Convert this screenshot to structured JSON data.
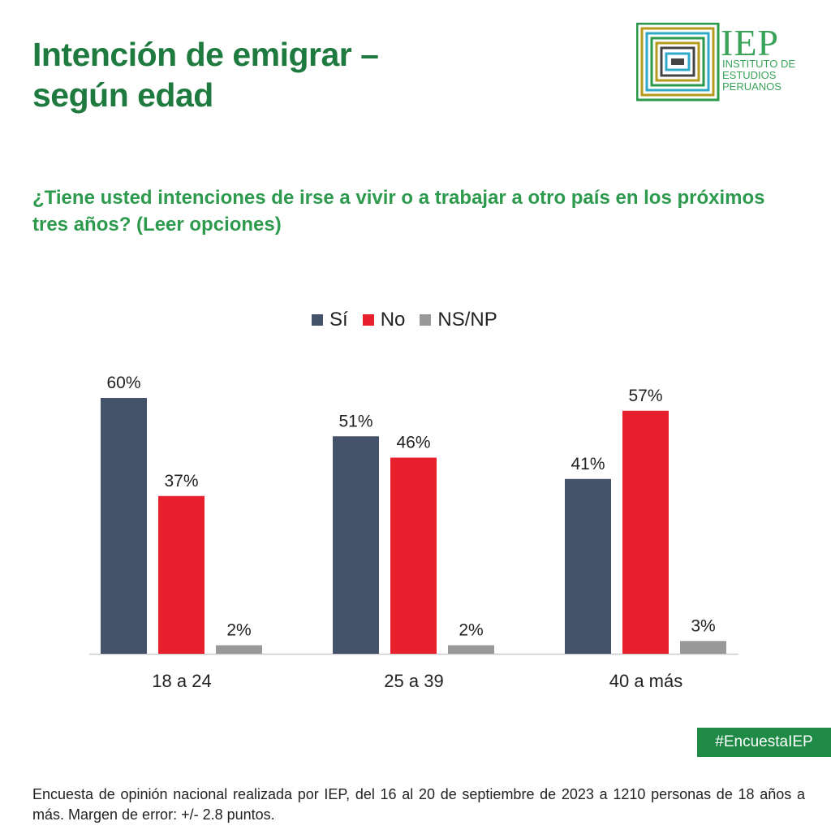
{
  "header": {
    "title_line1": "Intención de emigrar –",
    "title_line2": "según edad"
  },
  "logo": {
    "name": "IEP",
    "sub_line1": "INSTITUTO DE",
    "sub_line2": "ESTUDIOS",
    "sub_line3": "PERUANOS"
  },
  "question": "¿Tiene usted intenciones de irse a vivir o a trabajar a otro país en los próximos tres años? (Leer opciones)",
  "legend": [
    {
      "label": "Sí",
      "color": "#44526a"
    },
    {
      "label": "No",
      "color": "#e8202e"
    },
    {
      "label": "NS/NP",
      "color": "#999999"
    }
  ],
  "chart_data": {
    "type": "bar",
    "title": "Intención de emigrar – según edad",
    "xlabel": "",
    "ylabel": "",
    "ylim": [
      0,
      60
    ],
    "grid": false,
    "legend_position": "top",
    "categories": [
      "18 a 24",
      "25 a 39",
      "40 a más"
    ],
    "series": [
      {
        "name": "Sí",
        "color": "#44526a",
        "values": [
          60,
          51,
          41
        ],
        "labels": [
          "60%",
          "51%",
          "41%"
        ]
      },
      {
        "name": "No",
        "color": "#e8202e",
        "values": [
          37,
          46,
          57
        ],
        "labels": [
          "37%",
          "46%",
          "57%"
        ]
      },
      {
        "name": "NS/NP",
        "color": "#999999",
        "values": [
          2,
          2,
          3
        ],
        "labels": [
          "2%",
          "2%",
          "3%"
        ]
      }
    ]
  },
  "hashtag": "#EncuestaIEP",
  "footnote": "Encuesta de opinión nacional realizada por IEP, del 16 al 20 de septiembre de 2023 a 1210 personas de 18 años a más. Margen de error: +/- 2.8 puntos."
}
